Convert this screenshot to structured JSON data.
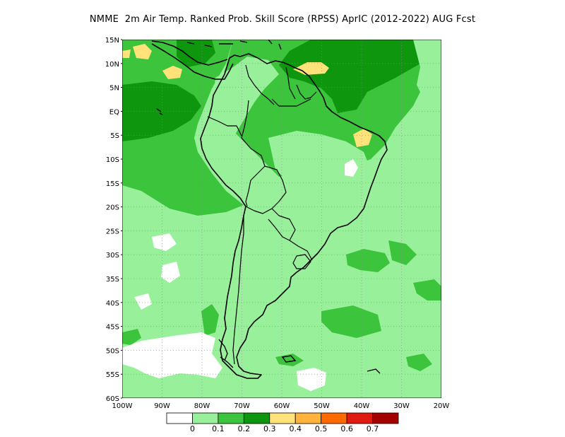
{
  "title": "NMME  2m Air Temp. Ranked Prob. Skill Score (RPSS) AprIC (2012-2022) AUG Fcst",
  "map": {
    "lon_range": [
      -100,
      -20
    ],
    "lat_range": [
      -60,
      15
    ],
    "y_ticks": [
      "15N",
      "10N",
      "5N",
      "EQ",
      "5S",
      "10S",
      "15S",
      "20S",
      "25S",
      "30S",
      "35S",
      "40S",
      "45S",
      "50S",
      "55S",
      "60S"
    ],
    "x_ticks": [
      "100W",
      "90W",
      "80W",
      "70W",
      "60W",
      "50W",
      "40W",
      "30W",
      "20W"
    ],
    "grid": true
  },
  "colorbar": {
    "colors": [
      "#ffffff",
      "#98f09a",
      "#3cc43c",
      "#0e960e",
      "#ffe27a",
      "#ffb33c",
      "#ff6a00",
      "#e01a10",
      "#a50000"
    ],
    "labels": [
      "0",
      "0.1",
      "0.2",
      "0.3",
      "0.4",
      "0.5",
      "0.6",
      "0.7"
    ]
  },
  "legend_colors": {
    "ocean_base": "#98f09a",
    "land_base": "#98f09a",
    "border": "#000000",
    "grid": "#888888"
  }
}
